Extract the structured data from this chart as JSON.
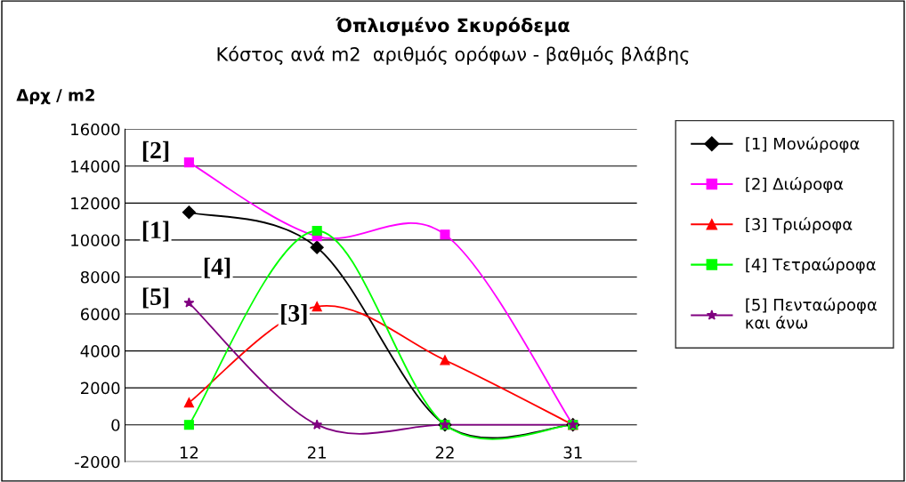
{
  "chart_data": {
    "type": "line",
    "title": "Όπλισμένο Σκυρόδεμα",
    "subtitle": "Κόστος ανά m2  αριθμός ορόφων - βαθμός βλάβης",
    "ylabel": "Δρχ / m2",
    "categories": [
      "12",
      "21",
      "22",
      "31"
    ],
    "series": [
      {
        "name": "[1] Μονώροφα",
        "color": "#000000",
        "marker": "diamond",
        "values": [
          11500,
          9600,
          0,
          0
        ]
      },
      {
        "name": "[2] Διώροφα",
        "color": "#ff00ff",
        "marker": "square",
        "values": [
          14200,
          10200,
          10300,
          0
        ]
      },
      {
        "name": "[3] Τριώροφα",
        "color": "#ff0000",
        "marker": "triangle",
        "values": [
          1200,
          6400,
          3500,
          0
        ]
      },
      {
        "name": "[4] Τετραώροφα",
        "color": "#00ff00",
        "marker": "square",
        "values": [
          0,
          10500,
          0,
          0
        ]
      },
      {
        "name": "[5] Πενταώροφα\nκαι άνω",
        "color": "#800080",
        "marker": "star",
        "values": [
          6600,
          0,
          0,
          0
        ]
      }
    ],
    "ylim": [
      -2000,
      16000
    ],
    "yticks": [
      -2000,
      0,
      2000,
      4000,
      6000,
      8000,
      10000,
      12000,
      14000,
      16000
    ],
    "grid": "y",
    "legend": "right",
    "line_style": "solid",
    "annotations": [
      "[1]",
      "[2]",
      "[3]",
      "[4]",
      "[5]"
    ]
  }
}
